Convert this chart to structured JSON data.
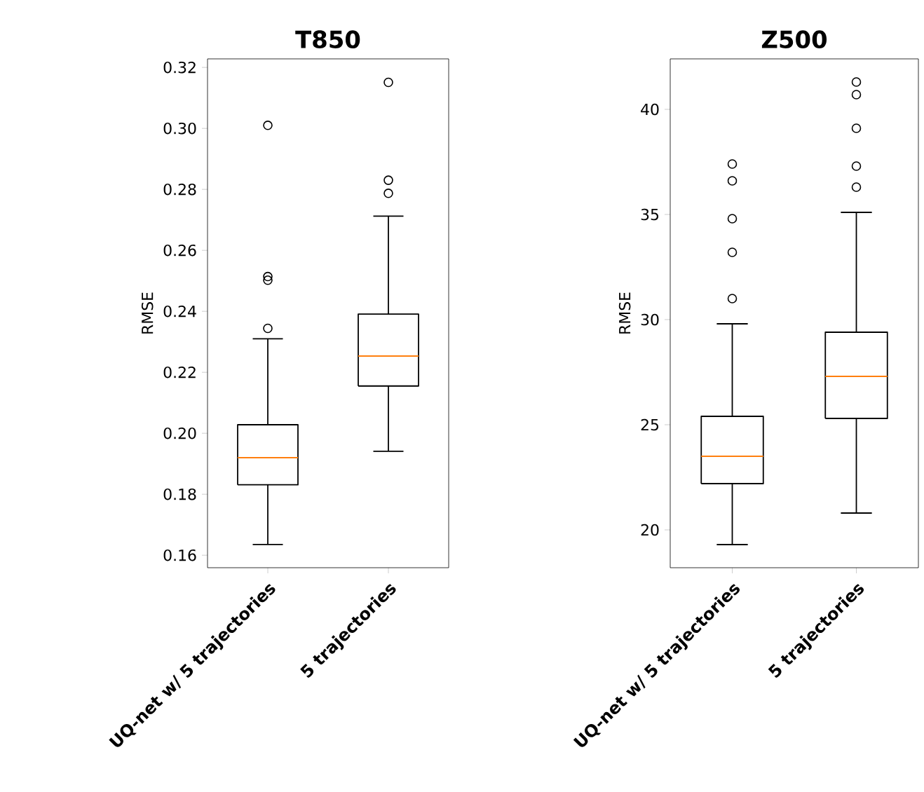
{
  "chart_data": [
    {
      "type": "box",
      "title": "T850",
      "ylabel": "RMSE",
      "categories": [
        "UQ-net w/ 5 trajectories",
        "5 trajectories"
      ],
      "boxes": [
        {
          "low": 0.1635,
          "q1": 0.1831,
          "median": 0.192,
          "q3": 0.2028,
          "high": 0.231,
          "outliers": [
            0.2344,
            0.2502,
            0.2514,
            0.301
          ]
        },
        {
          "low": 0.1941,
          "q1": 0.2155,
          "median": 0.2253,
          "q3": 0.2391,
          "high": 0.2712,
          "outliers": [
            0.2787,
            0.283,
            0.3151
          ]
        }
      ],
      "ylim": [
        0.1559,
        0.3228
      ],
      "yticks": [
        {
          "value": 0.16,
          "label": "0.16"
        },
        {
          "value": 0.18,
          "label": "0.18"
        },
        {
          "value": 0.2,
          "label": "0.20"
        },
        {
          "value": 0.22,
          "label": "0.22"
        },
        {
          "value": 0.24,
          "label": "0.24"
        },
        {
          "value": 0.26,
          "label": "0.26"
        },
        {
          "value": 0.28,
          "label": "0.28"
        },
        {
          "value": 0.3,
          "label": "0.30"
        },
        {
          "value": 0.32,
          "label": "0.32"
        }
      ]
    },
    {
      "type": "box",
      "title": "Z500",
      "ylabel": "RMSE",
      "categories": [
        "UQ-net w/ 5 trajectories",
        "5 trajectories"
      ],
      "boxes": [
        {
          "low": 19.3,
          "q1": 22.2,
          "median": 23.5,
          "q3": 25.4,
          "high": 29.8,
          "outliers": [
            31.0,
            33.2,
            34.8,
            36.6,
            37.4
          ]
        },
        {
          "low": 20.8,
          "q1": 25.3,
          "median": 27.3,
          "q3": 29.4,
          "high": 35.1,
          "outliers": [
            36.3,
            37.3,
            39.1,
            40.7,
            41.3
          ]
        }
      ],
      "ylim": [
        18.2,
        42.4
      ],
      "yticks": [
        20,
        25,
        30,
        35,
        40
      ]
    }
  ]
}
